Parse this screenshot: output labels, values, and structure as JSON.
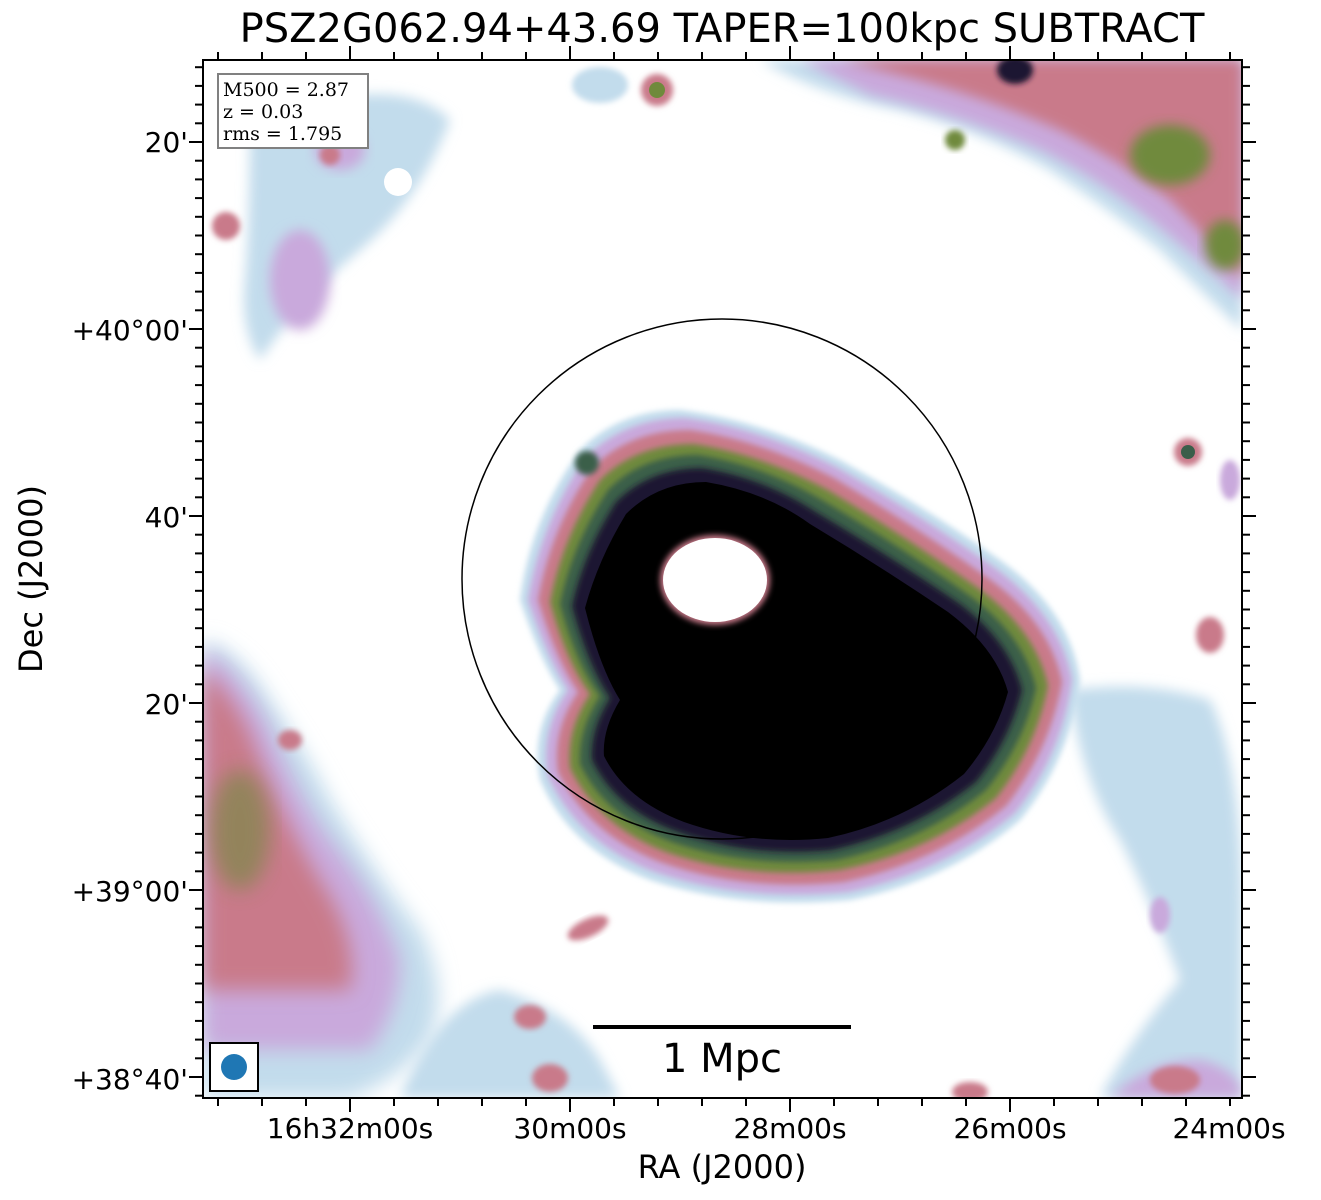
{
  "figure": {
    "title": "PSZ2G062.94+43.69 TAPER=100kpc SUBTRACT",
    "xlabel": "RA (J2000)",
    "ylabel": "Dec (J2000)",
    "x_ticks": [
      "16h32m00s",
      "30m00s",
      "28m00s",
      "26m00s",
      "24m00s"
    ],
    "y_ticks": [
      "20'",
      "+40°00'",
      "40'",
      "20'",
      "+39°00'",
      "+38°40'"
    ],
    "info_box": {
      "lines": [
        "M500 = 2.87",
        "z = 0.03",
        "rms = 1.795"
      ]
    },
    "scalebar_label": "1 Mpc",
    "colors": {
      "halo_core": "#000000",
      "deep_purple": "#1e1230",
      "dark_green": "#3a5e4a",
      "olive": "#6f8a3c",
      "pink": "#c97a8a",
      "lavender": "#c9a9dc",
      "light_blue": "#c2dcec",
      "beam": "#1f77b4"
    }
  }
}
